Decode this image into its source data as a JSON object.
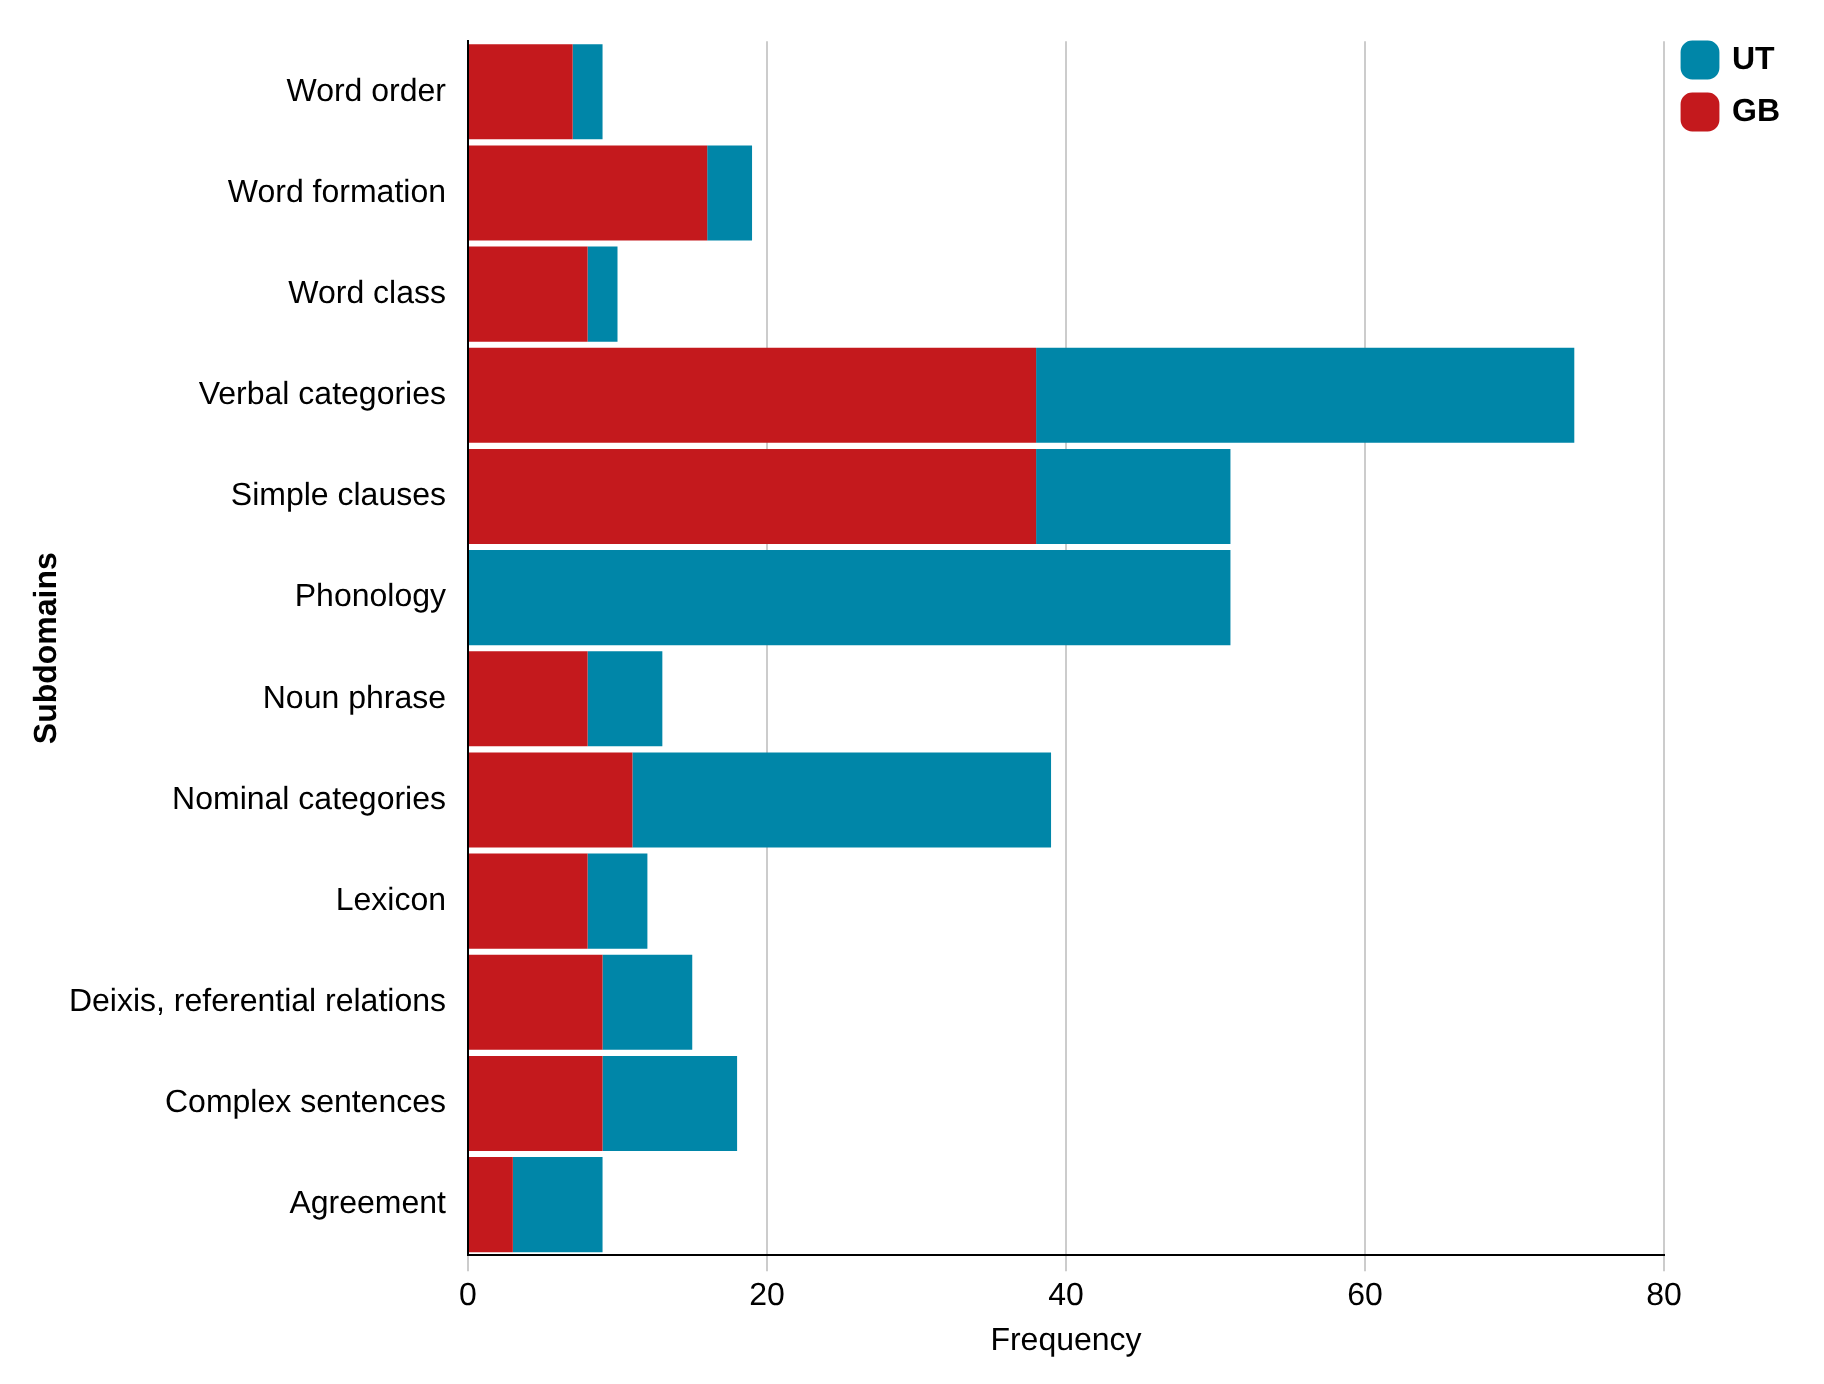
{
  "chart_data": {
    "type": "bar",
    "orientation": "horizontal",
    "stacked": true,
    "xlabel": "Frequency",
    "ylabel": "Subdomains",
    "categories": [
      "Word order",
      "Word formation",
      "Word class",
      "Verbal categories",
      "Simple clauses",
      "Phonology",
      "Noun phrase",
      "Nominal categories",
      "Lexicon",
      "Deixis, referential relations",
      "Complex sentences",
      "Agreement"
    ],
    "series": [
      {
        "name": "GB",
        "color": "#c4191d",
        "values": [
          7,
          16,
          8,
          38,
          38,
          0,
          8,
          11,
          8,
          9,
          9,
          3
        ]
      },
      {
        "name": "UT",
        "color": "#0086a8",
        "values": [
          2,
          3,
          2,
          36,
          13,
          51,
          5,
          28,
          4,
          6,
          9,
          6
        ]
      }
    ],
    "xlim": [
      0,
      80
    ],
    "xticks": [
      0,
      20,
      40,
      60,
      80
    ],
    "grid": "x",
    "legend": "top right"
  }
}
